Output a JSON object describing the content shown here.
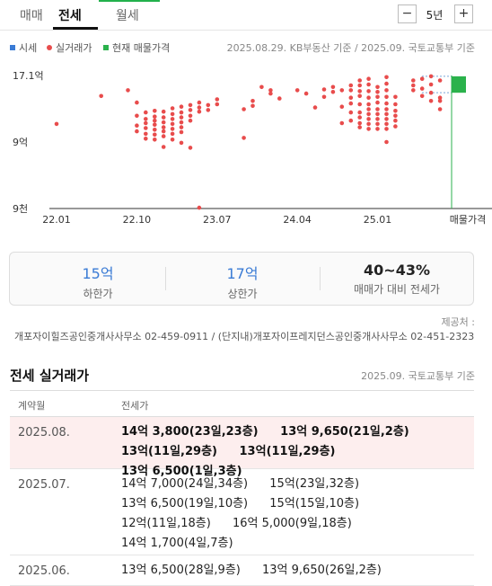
{
  "tabs": [
    {
      "label": "매매",
      "active": false
    },
    {
      "label": "전세",
      "active": true
    },
    {
      "label": "월세",
      "active": false
    }
  ],
  "period": {
    "minus": "−",
    "value": "5년",
    "plus": "+"
  },
  "legend": [
    {
      "label": "시세",
      "color": "#3a7bd5"
    },
    {
      "label": "실거래가",
      "color": "#e84c4c"
    },
    {
      "label": "현재 매물가격",
      "color": "#2bb24c"
    }
  ],
  "source_note": "2025.08.29. KB부동산 기준 / 2025.09. 국토교통부 기준",
  "chart_data": {
    "type": "scatter",
    "title": "",
    "xlabel": "",
    "ylabel": "",
    "y_tick_labels": [
      "17.1억",
      "9억",
      "9천"
    ],
    "x_tick_labels": [
      "22.01",
      "22.10",
      "23.07",
      "24.04",
      "25.01",
      "매물가격"
    ],
    "ylim": [
      0.9,
      17.1
    ],
    "xlim": [
      "2022-01",
      "2025-09"
    ],
    "series": [
      {
        "name": "실거래가",
        "color": "#e84c4c",
        "points": [
          [
            "2022-01",
            11.2
          ],
          [
            "2022-06",
            14.6
          ],
          [
            "2022-09",
            15.3
          ],
          [
            "2022-10",
            13.8
          ],
          [
            "2022-10",
            12.2
          ],
          [
            "2022-10",
            11.0
          ],
          [
            "2022-10",
            10.3
          ],
          [
            "2022-11",
            12.6
          ],
          [
            "2022-11",
            11.8
          ],
          [
            "2022-11",
            11.3
          ],
          [
            "2022-11",
            10.7
          ],
          [
            "2022-11",
            10.0
          ],
          [
            "2022-11",
            9.4
          ],
          [
            "2022-12",
            12.8
          ],
          [
            "2022-12",
            12.1
          ],
          [
            "2022-12",
            11.6
          ],
          [
            "2022-12",
            11.1
          ],
          [
            "2022-12",
            10.5
          ],
          [
            "2022-12",
            9.9
          ],
          [
            "2022-12",
            9.3
          ],
          [
            "2023-01",
            12.7
          ],
          [
            "2023-01",
            12.0
          ],
          [
            "2023-01",
            11.4
          ],
          [
            "2023-01",
            10.8
          ],
          [
            "2023-01",
            10.3
          ],
          [
            "2023-01",
            9.7
          ],
          [
            "2023-01",
            8.4
          ],
          [
            "2023-02",
            13.1
          ],
          [
            "2023-02",
            12.4
          ],
          [
            "2023-02",
            11.8
          ],
          [
            "2023-02",
            11.2
          ],
          [
            "2023-02",
            10.6
          ],
          [
            "2023-02",
            10.0
          ],
          [
            "2023-02",
            9.3
          ],
          [
            "2023-03",
            13.3
          ],
          [
            "2023-03",
            12.6
          ],
          [
            "2023-03",
            12.0
          ],
          [
            "2023-03",
            11.4
          ],
          [
            "2023-03",
            10.8
          ],
          [
            "2023-03",
            10.2
          ],
          [
            "2023-03",
            8.9
          ],
          [
            "2023-04",
            13.5
          ],
          [
            "2023-04",
            12.9
          ],
          [
            "2023-04",
            12.2
          ],
          [
            "2023-04",
            11.6
          ],
          [
            "2023-04",
            8.3
          ],
          [
            "2023-05",
            13.8
          ],
          [
            "2023-05",
            13.2
          ],
          [
            "2023-05",
            12.7
          ],
          [
            "2023-05",
            1.0
          ],
          [
            "2023-06",
            13.5
          ],
          [
            "2023-06",
            12.9
          ],
          [
            "2023-07",
            14.2
          ],
          [
            "2023-07",
            13.6
          ],
          [
            "2023-10",
            13.0
          ],
          [
            "2023-10",
            9.5
          ],
          [
            "2023-11",
            14.0
          ],
          [
            "2023-11",
            13.4
          ],
          [
            "2023-12",
            15.7
          ],
          [
            "2024-01",
            15.3
          ],
          [
            "2024-01",
            14.9
          ],
          [
            "2024-02",
            14.3
          ],
          [
            "2024-04",
            15.3
          ],
          [
            "2024-05",
            14.9
          ],
          [
            "2024-06",
            13.2
          ],
          [
            "2024-07",
            15.4
          ],
          [
            "2024-07",
            14.5
          ],
          [
            "2024-08",
            15.7
          ],
          [
            "2024-08",
            15.1
          ],
          [
            "2024-09",
            15.3
          ],
          [
            "2024-09",
            13.3
          ],
          [
            "2024-09",
            11.3
          ],
          [
            "2024-10",
            15.9
          ],
          [
            "2024-10",
            15.3
          ],
          [
            "2024-10",
            14.4
          ],
          [
            "2024-10",
            13.7
          ],
          [
            "2024-10",
            12.6
          ],
          [
            "2024-10",
            11.6
          ],
          [
            "2024-11",
            16.5
          ],
          [
            "2024-11",
            15.9
          ],
          [
            "2024-11",
            15.2
          ],
          [
            "2024-11",
            14.6
          ],
          [
            "2024-11",
            13.6
          ],
          [
            "2024-11",
            12.6
          ],
          [
            "2024-11",
            12.0
          ],
          [
            "2024-11",
            11.3
          ],
          [
            "2024-11",
            10.8
          ],
          [
            "2024-12",
            16.7
          ],
          [
            "2024-12",
            16.0
          ],
          [
            "2024-12",
            15.2
          ],
          [
            "2024-12",
            14.4
          ],
          [
            "2024-12",
            13.6
          ],
          [
            "2024-12",
            13.0
          ],
          [
            "2024-12",
            12.4
          ],
          [
            "2024-12",
            11.8
          ],
          [
            "2024-12",
            11.2
          ],
          [
            "2024-12",
            10.6
          ],
          [
            "2025-01",
            15.7
          ],
          [
            "2025-01",
            15.1
          ],
          [
            "2025-01",
            14.5
          ],
          [
            "2025-01",
            13.8
          ],
          [
            "2025-01",
            13.0
          ],
          [
            "2025-01",
            12.4
          ],
          [
            "2025-01",
            11.8
          ],
          [
            "2025-01",
            11.2
          ],
          [
            "2025-01",
            10.6
          ],
          [
            "2025-02",
            16.9
          ],
          [
            "2025-02",
            16.1
          ],
          [
            "2025-02",
            15.3
          ],
          [
            "2025-02",
            14.5
          ],
          [
            "2025-02",
            13.7
          ],
          [
            "2025-02",
            13.0
          ],
          [
            "2025-02",
            12.4
          ],
          [
            "2025-02",
            11.8
          ],
          [
            "2025-02",
            11.2
          ],
          [
            "2025-02",
            10.6
          ],
          [
            "2025-02",
            9.0
          ],
          [
            "2025-03",
            14.5
          ],
          [
            "2025-03",
            13.6
          ],
          [
            "2025-03",
            12.8
          ],
          [
            "2025-03",
            12.2
          ],
          [
            "2025-03",
            11.6
          ],
          [
            "2025-03",
            10.9
          ],
          [
            "2025-05",
            16.5
          ],
          [
            "2025-05",
            15.9
          ],
          [
            "2025-05",
            15.3
          ],
          [
            "2025-06",
            16.7
          ],
          [
            "2025-06",
            15.5
          ],
          [
            "2025-06",
            14.6
          ],
          [
            "2025-07",
            17.0
          ],
          [
            "2025-07",
            16.0
          ],
          [
            "2025-07",
            15.0
          ],
          [
            "2025-07",
            14.0
          ],
          [
            "2025-08",
            16.5
          ],
          [
            "2025-08",
            14.4
          ],
          [
            "2025-08",
            14.0
          ],
          [
            "2025-08",
            13.0
          ]
        ]
      }
    ],
    "current_listing": {
      "name": "현재 매물가격",
      "color": "#2bb24c",
      "low": 15.0,
      "high": 17.0
    },
    "grid": false
  },
  "summary": [
    {
      "value": "15억",
      "label": "하한가"
    },
    {
      "value": "17억",
      "label": "상한가"
    },
    {
      "value": "40~43%",
      "label": "매매가 대비 전세가"
    }
  ],
  "agency": {
    "label": "제공처 :",
    "text": "개포자이힐즈공인중개사사무소 02-459-0911 / (단지내)개포자이프레지던스공인중개사사무소 02-451-2323"
  },
  "transactions": {
    "title": "전세 실거래가",
    "note": "2025.09. 국토교통부 기준",
    "col_month": "계약월",
    "col_price": "전세가",
    "rows": [
      {
        "month": "2025.08.",
        "highlight": true,
        "items": [
          "14억 3,800(23일,23층)",
          "13억 9,650(21일,2층)",
          "13억(11일,29층)",
          "13억(11일,29층)",
          "13억 6,500(1일,3층)"
        ]
      },
      {
        "month": "2025.07.",
        "highlight": false,
        "items": [
          "14억 7,000(24일,34층)",
          "15억(23일,32층)",
          "13억 6,500(19일,10층)",
          "15억(15일,10층)",
          "12억(11일,18층)",
          "16억 5,000(9일,18층)",
          "14억 1,700(4일,7층)"
        ]
      },
      {
        "month": "2025.06.",
        "highlight": false,
        "items": [
          "13억 6,500(28일,9층)",
          "13억 9,650(26일,2층)"
        ]
      }
    ]
  }
}
